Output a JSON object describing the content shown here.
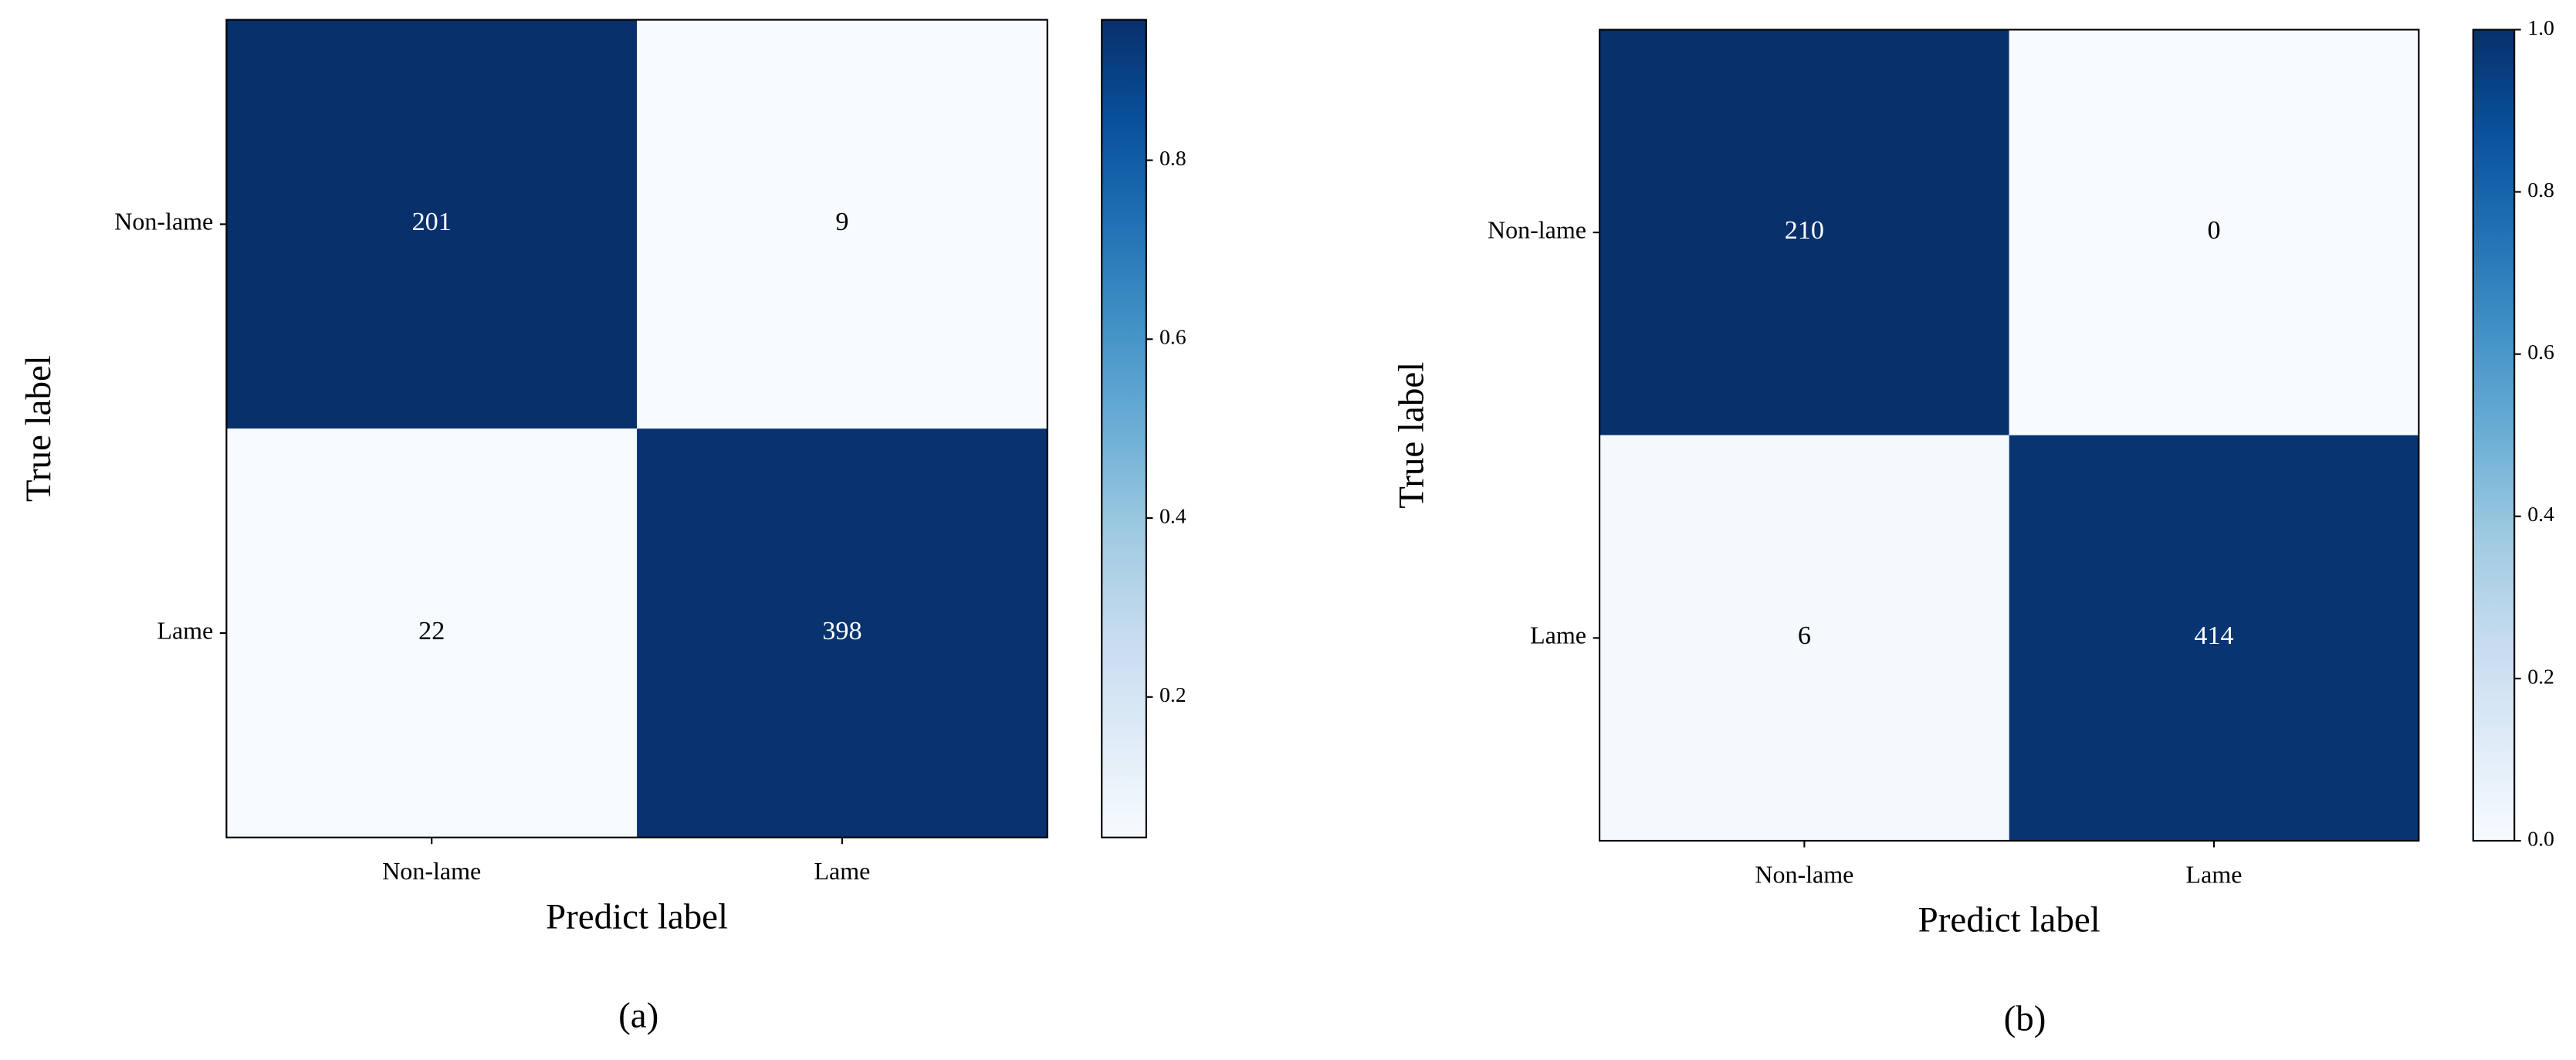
{
  "chart_data": [
    {
      "type": "heatmap",
      "caption": "(a)",
      "xlabel": "Predict label",
      "ylabel": "True label",
      "x_categories": [
        "Non-lame",
        "Lame"
      ],
      "y_categories": [
        "Non-lame",
        "Lame"
      ],
      "values": [
        [
          201,
          9
        ],
        [
          22,
          398
        ]
      ],
      "zlim": [
        0.043,
        0.957
      ],
      "zticks": [
        0.2,
        0.4,
        0.6,
        0.8
      ],
      "colormap": [
        "#f7fbff",
        "#deebf7",
        "#c6dbef",
        "#9ecae1",
        "#6baed6",
        "#4292c6",
        "#2171b5",
        "#08519c",
        "#08306b"
      ]
    },
    {
      "type": "heatmap",
      "caption": "(b)",
      "xlabel": "Predict label",
      "ylabel": "True label",
      "x_categories": [
        "Non-lame",
        "Lame"
      ],
      "y_categories": [
        "Non-lame",
        "Lame"
      ],
      "values": [
        [
          210,
          0
        ],
        [
          6,
          414
        ]
      ],
      "zlim": [
        0,
        1
      ],
      "zticks": [
        {
          "value": 0,
          "label": "0.0"
        },
        0.2,
        0.4,
        0.6,
        0.8,
        {
          "value": 1,
          "label": "1.0"
        }
      ],
      "colormap": [
        "#f7fbff",
        "#deebf7",
        "#c6dbef",
        "#9ecae1",
        "#6baed6",
        "#4292c6",
        "#2171b5",
        "#08519c",
        "#08306b"
      ]
    }
  ]
}
